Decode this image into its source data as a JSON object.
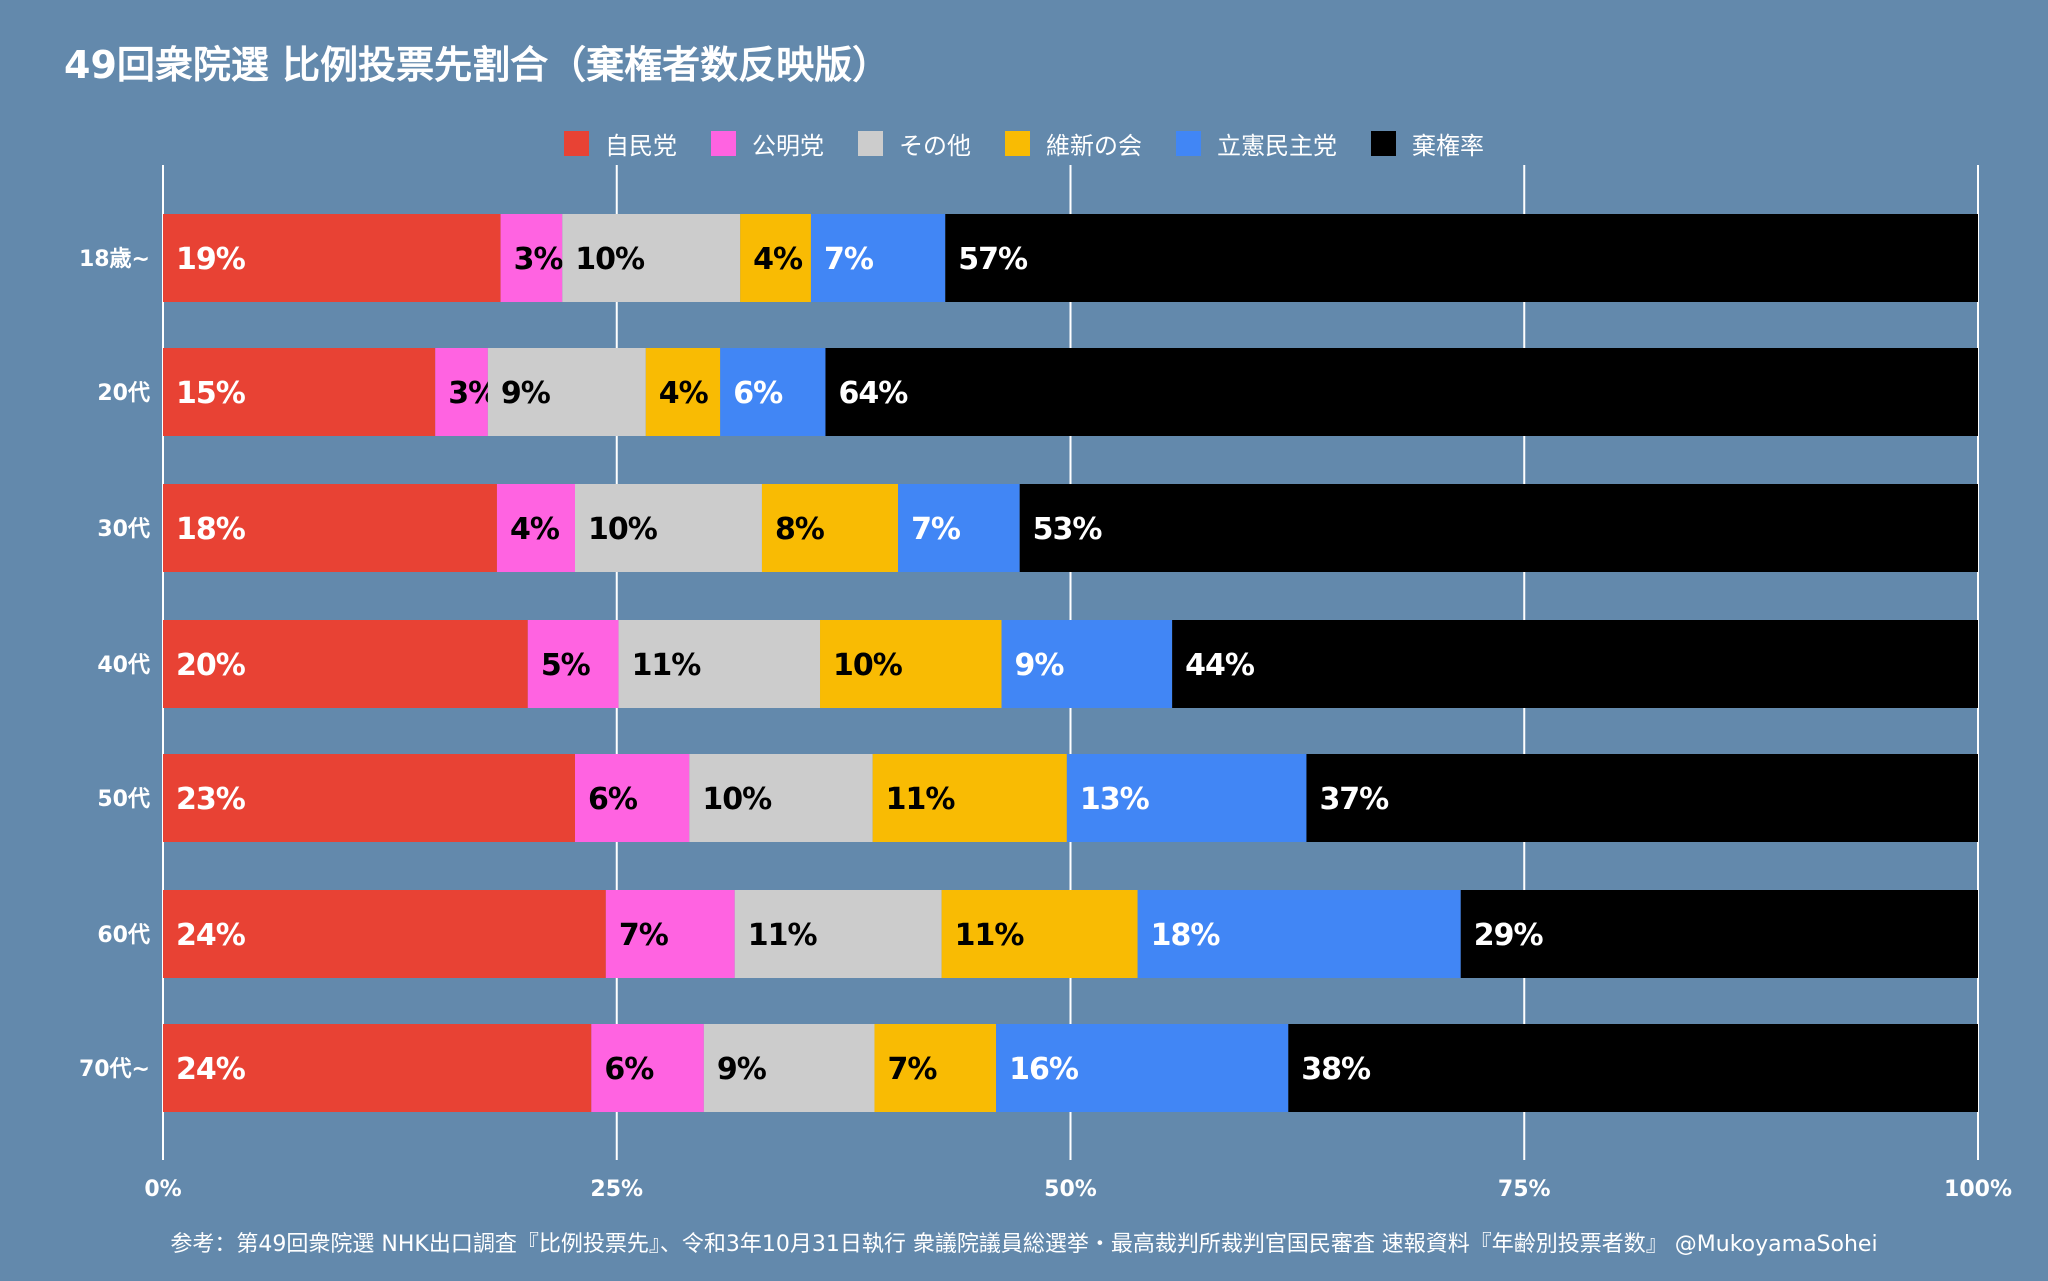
{
  "title": "49回衆院選 比例投票先割合（棄権者数反映版）",
  "footer": "参考：第49回衆院選 NHK出口調査『比例投票先』、令和3年10月31日執行 衆議院議員総選挙・最高裁判所裁判官国民審査 速報資料『年齢別投票者数』 @MukoyamaSohei",
  "chart_data": {
    "type": "bar",
    "orientation": "horizontal",
    "stacked": true,
    "title": "49回衆院選 比例投票先割合（棄権者数反映版）",
    "categories": [
      "18歳~",
      "20代",
      "30代",
      "40代",
      "50代",
      "60代",
      "70代~"
    ],
    "series": [
      {
        "name": "自民党",
        "color": "#e84234",
        "label_color": "#ffffff",
        "values": [
          18.6,
          15.0,
          18.4,
          20.1,
          22.7,
          24.4,
          23.6
        ],
        "labels": [
          "19%",
          "15%",
          "18%",
          "20%",
          "23%",
          "24%",
          "24%"
        ]
      },
      {
        "name": "公明党",
        "color": "#ff63e1",
        "label_color": "#000000",
        "values": [
          3.4,
          2.9,
          4.3,
          5.0,
          6.3,
          7.1,
          6.2
        ],
        "labels": [
          "3%",
          "3%",
          "4%",
          "5%",
          "6%",
          "7%",
          "6%"
        ]
      },
      {
        "name": "その他",
        "color": "#cccccc",
        "label_color": "#000000",
        "values": [
          9.8,
          8.7,
          10.3,
          11.1,
          10.1,
          11.4,
          9.4
        ],
        "labels": [
          "10%",
          "9%",
          "10%",
          "11%",
          "10%",
          "11%",
          "9%"
        ]
      },
      {
        "name": "維新の会",
        "color": "#f9bb03",
        "label_color": "#000000",
        "values": [
          3.9,
          4.1,
          7.5,
          10.0,
          10.7,
          10.8,
          6.7
        ],
        "labels": [
          "4%",
          "4%",
          "8%",
          "10%",
          "11%",
          "11%",
          "7%"
        ]
      },
      {
        "name": "立憲民主党",
        "color": "#4186f5",
        "label_color": "#ffffff",
        "values": [
          7.4,
          5.8,
          6.7,
          9.4,
          13.2,
          17.8,
          16.1
        ],
        "labels": [
          "7%",
          "6%",
          "7%",
          "9%",
          "13%",
          "18%",
          "16%"
        ]
      },
      {
        "name": "棄権率",
        "color": "#000000",
        "label_color": "#ffffff",
        "values": [
          56.9,
          63.5,
          52.8,
          44.4,
          37.0,
          28.5,
          38.0
        ],
        "labels": [
          "57%",
          "64%",
          "53%",
          "44%",
          "37%",
          "29%",
          "38%"
        ]
      }
    ],
    "xlim": [
      0,
      100
    ],
    "x_ticks": [
      0,
      25,
      50,
      75,
      100
    ],
    "x_tick_labels": [
      "0%",
      "25%",
      "50%",
      "75%",
      "100%"
    ],
    "grid": true,
    "legend_position": "top-center"
  }
}
